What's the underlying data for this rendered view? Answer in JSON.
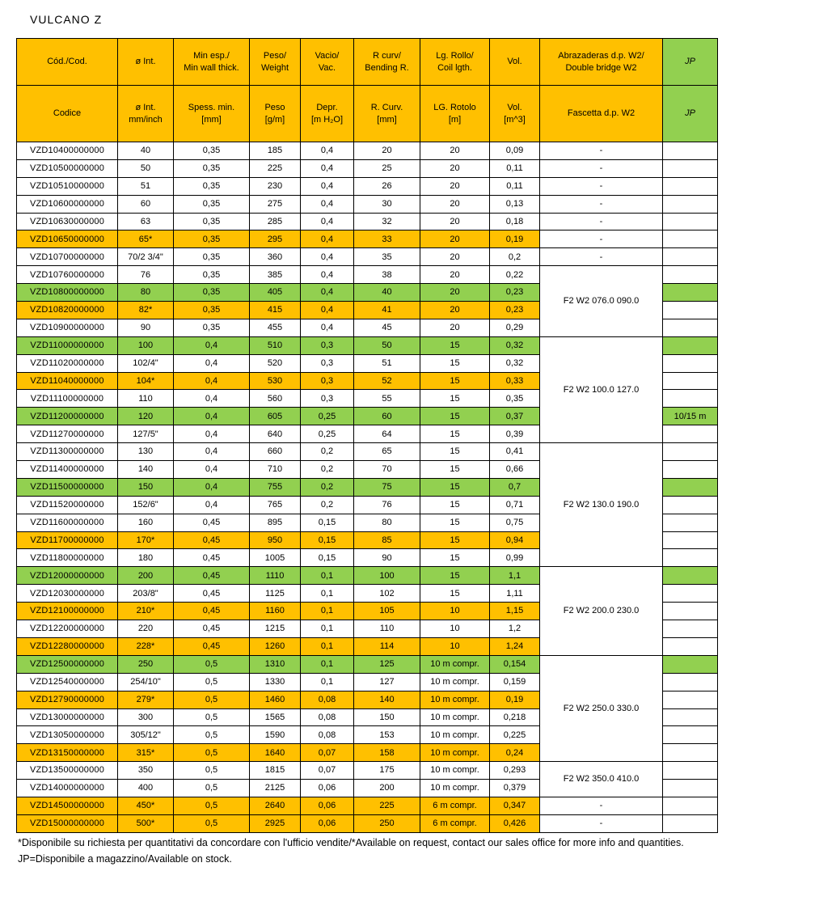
{
  "title": "VULCANO Z",
  "colors": {
    "header_orange": "#FFC000",
    "row_highlight_orange": "#FFC000",
    "row_highlight_green": "#92D050",
    "border": "#000000"
  },
  "header": {
    "row1": [
      "Cód./Cod.",
      "ø Int.",
      "Min esp./\nMin wall thick.",
      "Peso/\nWeight",
      "Vacio/\nVac.",
      "R curv/\nBending R.",
      "Lg. Rollo/\nCoil lgth.",
      "Vol.",
      "Abrazaderas d.p. W2/\nDouble bridge W2",
      "JP"
    ],
    "row2": [
      "Codice",
      "ø Int.\nmm/inch",
      "Spess. min.\n[mm]",
      "Peso\n[g/m]",
      "Depr.\n[m H₂O]",
      "R. Curv.\n[mm]",
      "LG. Rotolo\n[m]",
      "Vol.\n[m^3]",
      "Fascetta d.p. W2",
      "JP"
    ],
    "column_ids": [
      "code",
      "diameter",
      "min-wall",
      "weight",
      "vacuum",
      "bending-radius",
      "coil-length",
      "volume",
      "double-bridge-clamp",
      "jp"
    ]
  },
  "rows": [
    {
      "code": "VZD10400000000",
      "size": "40",
      "thickness": "0,35",
      "weight": "185",
      "vacuum": "0,4",
      "bending_r": "20",
      "coil": "20",
      "volume": "0,09",
      "highlight": "",
      "jp_bg": "",
      "jp_text": "",
      "fascetta": {
        "text": "-",
        "rowspan": 1
      }
    },
    {
      "code": "VZD10500000000",
      "size": "50",
      "thickness": "0,35",
      "weight": "225",
      "vacuum": "0,4",
      "bending_r": "25",
      "coil": "20",
      "volume": "0,11",
      "highlight": "",
      "jp_bg": "",
      "jp_text": "",
      "fascetta": {
        "text": "-",
        "rowspan": 1
      }
    },
    {
      "code": "VZD10510000000",
      "size": "51",
      "thickness": "0,35",
      "weight": "230",
      "vacuum": "0,4",
      "bending_r": "26",
      "coil": "20",
      "volume": "0,11",
      "highlight": "",
      "jp_bg": "",
      "jp_text": "",
      "fascetta": {
        "text": "-",
        "rowspan": 1
      }
    },
    {
      "code": "VZD10600000000",
      "size": "60",
      "thickness": "0,35",
      "weight": "275",
      "vacuum": "0,4",
      "bending_r": "30",
      "coil": "20",
      "volume": "0,13",
      "highlight": "",
      "jp_bg": "",
      "jp_text": "",
      "fascetta": {
        "text": "-",
        "rowspan": 1
      }
    },
    {
      "code": "VZD10630000000",
      "size": "63",
      "thickness": "0,35",
      "weight": "285",
      "vacuum": "0,4",
      "bending_r": "32",
      "coil": "20",
      "volume": "0,18",
      "highlight": "",
      "jp_bg": "",
      "jp_text": "",
      "fascetta": {
        "text": "-",
        "rowspan": 1
      }
    },
    {
      "code": "VZD10650000000",
      "size": "65*",
      "thickness": "0,35",
      "weight": "295",
      "vacuum": "0,4",
      "bending_r": "33",
      "coil": "20",
      "volume": "0,19",
      "highlight": "orange",
      "jp_bg": "",
      "jp_text": "",
      "fascetta": {
        "text": "-",
        "rowspan": 1
      }
    },
    {
      "code": "VZD10700000000",
      "size": "70/2 3/4\"",
      "thickness": "0,35",
      "weight": "360",
      "vacuum": "0,4",
      "bending_r": "35",
      "coil": "20",
      "volume": "0,2",
      "highlight": "",
      "jp_bg": "",
      "jp_text": "",
      "fascetta": {
        "text": "-",
        "rowspan": 1
      }
    },
    {
      "code": "VZD10760000000",
      "size": "76",
      "thickness": "0,35",
      "weight": "385",
      "vacuum": "0,4",
      "bending_r": "38",
      "coil": "20",
      "volume": "0,22",
      "highlight": "",
      "jp_bg": "",
      "jp_text": "",
      "fascetta": {
        "text": "F2 W2 076.0 090.0",
        "rowspan": 4
      }
    },
    {
      "code": "VZD10800000000",
      "size": "80",
      "thickness": "0,35",
      "weight": "405",
      "vacuum": "0,4",
      "bending_r": "40",
      "coil": "20",
      "volume": "0,23",
      "highlight": "green",
      "jp_bg": "green",
      "jp_text": "",
      "fascetta": null
    },
    {
      "code": "VZD10820000000",
      "size": "82*",
      "thickness": "0,35",
      "weight": "415",
      "vacuum": "0,4",
      "bending_r": "41",
      "coil": "20",
      "volume": "0,23",
      "highlight": "orange",
      "jp_bg": "",
      "jp_text": "",
      "fascetta": null
    },
    {
      "code": "VZD10900000000",
      "size": "90",
      "thickness": "0,35",
      "weight": "455",
      "vacuum": "0,4",
      "bending_r": "45",
      "coil": "20",
      "volume": "0,29",
      "highlight": "",
      "jp_bg": "",
      "jp_text": "",
      "fascetta": null
    },
    {
      "code": "VZD11000000000",
      "size": "100",
      "thickness": "0,4",
      "weight": "510",
      "vacuum": "0,3",
      "bending_r": "50",
      "coil": "15",
      "volume": "0,32",
      "highlight": "green",
      "jp_bg": "green",
      "jp_text": "",
      "fascetta": {
        "text": "F2 W2 100.0 127.0",
        "rowspan": 6
      }
    },
    {
      "code": "VZD11020000000",
      "size": "102/4\"",
      "thickness": "0,4",
      "weight": "520",
      "vacuum": "0,3",
      "bending_r": "51",
      "coil": "15",
      "volume": "0,32",
      "highlight": "",
      "jp_bg": "",
      "jp_text": "",
      "fascetta": null
    },
    {
      "code": "VZD11040000000",
      "size": "104*",
      "thickness": "0,4",
      "weight": "530",
      "vacuum": "0,3",
      "bending_r": "52",
      "coil": "15",
      "volume": "0,33",
      "highlight": "orange",
      "jp_bg": "",
      "jp_text": "",
      "fascetta": null
    },
    {
      "code": "VZD11100000000",
      "size": "110",
      "thickness": "0,4",
      "weight": "560",
      "vacuum": "0,3",
      "bending_r": "55",
      "coil": "15",
      "volume": "0,35",
      "highlight": "",
      "jp_bg": "",
      "jp_text": "",
      "fascetta": null
    },
    {
      "code": "VZD11200000000",
      "size": "120",
      "thickness": "0,4",
      "weight": "605",
      "vacuum": "0,25",
      "bending_r": "60",
      "coil": "15",
      "volume": "0,37",
      "highlight": "green",
      "jp_bg": "green",
      "jp_text": "10/15 m",
      "fascetta": null
    },
    {
      "code": "VZD11270000000",
      "size": "127/5\"",
      "thickness": "0,4",
      "weight": "640",
      "vacuum": "0,25",
      "bending_r": "64",
      "coil": "15",
      "volume": "0,39",
      "highlight": "",
      "jp_bg": "",
      "jp_text": "",
      "fascetta": null
    },
    {
      "code": "VZD11300000000",
      "size": "130",
      "thickness": "0,4",
      "weight": "660",
      "vacuum": "0,2",
      "bending_r": "65",
      "coil": "15",
      "volume": "0,41",
      "highlight": "",
      "jp_bg": "",
      "jp_text": "",
      "fascetta": {
        "text": "F2 W2 130.0 190.0",
        "rowspan": 7
      }
    },
    {
      "code": "VZD11400000000",
      "size": "140",
      "thickness": "0,4",
      "weight": "710",
      "vacuum": "0,2",
      "bending_r": "70",
      "coil": "15",
      "volume": "0,66",
      "highlight": "",
      "jp_bg": "",
      "jp_text": "",
      "fascetta": null
    },
    {
      "code": "VZD11500000000",
      "size": "150",
      "thickness": "0,4",
      "weight": "755",
      "vacuum": "0,2",
      "bending_r": "75",
      "coil": "15",
      "volume": "0,7",
      "highlight": "green",
      "jp_bg": "green",
      "jp_text": "",
      "fascetta": null
    },
    {
      "code": "VZD11520000000",
      "size": "152/6\"",
      "thickness": "0,4",
      "weight": "765",
      "vacuum": "0,2",
      "bending_r": "76",
      "coil": "15",
      "volume": "0,71",
      "highlight": "",
      "jp_bg": "",
      "jp_text": "",
      "fascetta": null
    },
    {
      "code": "VZD11600000000",
      "size": "160",
      "thickness": "0,45",
      "weight": "895",
      "vacuum": "0,15",
      "bending_r": "80",
      "coil": "15",
      "volume": "0,75",
      "highlight": "",
      "jp_bg": "",
      "jp_text": "",
      "fascetta": null
    },
    {
      "code": "VZD11700000000",
      "size": "170*",
      "thickness": "0,45",
      "weight": "950",
      "vacuum": "0,15",
      "bending_r": "85",
      "coil": "15",
      "volume": "0,94",
      "highlight": "orange",
      "jp_bg": "",
      "jp_text": "",
      "fascetta": null
    },
    {
      "code": "VZD11800000000",
      "size": "180",
      "thickness": "0,45",
      "weight": "1005",
      "vacuum": "0,15",
      "bending_r": "90",
      "coil": "15",
      "volume": "0,99",
      "highlight": "",
      "jp_bg": "",
      "jp_text": "",
      "fascetta": null
    },
    {
      "code": "VZD12000000000",
      "size": "200",
      "thickness": "0,45",
      "weight": "1110",
      "vacuum": "0,1",
      "bending_r": "100",
      "coil": "15",
      "volume": "1,1",
      "highlight": "green",
      "jp_bg": "green",
      "jp_text": "",
      "fascetta": {
        "text": "F2 W2 200.0 230.0",
        "rowspan": 5
      }
    },
    {
      "code": "VZD12030000000",
      "size": "203/8\"",
      "thickness": "0,45",
      "weight": "1125",
      "vacuum": "0,1",
      "bending_r": "102",
      "coil": "15",
      "volume": "1,11",
      "highlight": "",
      "jp_bg": "",
      "jp_text": "",
      "fascetta": null
    },
    {
      "code": "VZD12100000000",
      "size": "210*",
      "thickness": "0,45",
      "weight": "1160",
      "vacuum": "0,1",
      "bending_r": "105",
      "coil": "10",
      "volume": "1,15",
      "highlight": "orange",
      "jp_bg": "",
      "jp_text": "",
      "fascetta": null
    },
    {
      "code": "VZD12200000000",
      "size": "220",
      "thickness": "0,45",
      "weight": "1215",
      "vacuum": "0,1",
      "bending_r": "110",
      "coil": "10",
      "volume": "1,2",
      "highlight": "",
      "jp_bg": "",
      "jp_text": "",
      "fascetta": null
    },
    {
      "code": "VZD12280000000",
      "size": "228*",
      "thickness": "0,45",
      "weight": "1260",
      "vacuum": "0,1",
      "bending_r": "114",
      "coil": "10",
      "volume": "1,24",
      "highlight": "orange",
      "jp_bg": "",
      "jp_text": "",
      "fascetta": null
    },
    {
      "code": "VZD12500000000",
      "size": "250",
      "thickness": "0,5",
      "weight": "1310",
      "vacuum": "0,1",
      "bending_r": "125",
      "coil": "10 m compr.",
      "volume": "0,154",
      "highlight": "green",
      "jp_bg": "green",
      "jp_text": "",
      "fascetta": {
        "text": "F2 W2 250.0 330.0",
        "rowspan": 6
      }
    },
    {
      "code": "VZD12540000000",
      "size": "254/10\"",
      "thickness": "0,5",
      "weight": "1330",
      "vacuum": "0,1",
      "bending_r": "127",
      "coil": "10 m compr.",
      "volume": "0,159",
      "highlight": "",
      "jp_bg": "",
      "jp_text": "",
      "fascetta": null
    },
    {
      "code": "VZD12790000000",
      "size": "279*",
      "thickness": "0,5",
      "weight": "1460",
      "vacuum": "0,08",
      "bending_r": "140",
      "coil": "10 m compr.",
      "volume": "0,19",
      "highlight": "orange",
      "jp_bg": "",
      "jp_text": "",
      "fascetta": null
    },
    {
      "code": "VZD13000000000",
      "size": "300",
      "thickness": "0,5",
      "weight": "1565",
      "vacuum": "0,08",
      "bending_r": "150",
      "coil": "10 m compr.",
      "volume": "0,218",
      "highlight": "",
      "jp_bg": "",
      "jp_text": "",
      "fascetta": null
    },
    {
      "code": "VZD13050000000",
      "size": "305/12\"",
      "thickness": "0,5",
      "weight": "1590",
      "vacuum": "0,08",
      "bending_r": "153",
      "coil": "10 m compr.",
      "volume": "0,225",
      "highlight": "",
      "jp_bg": "",
      "jp_text": "",
      "fascetta": null
    },
    {
      "code": "VZD13150000000",
      "size": "315*",
      "thickness": "0,5",
      "weight": "1640",
      "vacuum": "0,07",
      "bending_r": "158",
      "coil": "10 m compr.",
      "volume": "0,24",
      "highlight": "orange",
      "jp_bg": "",
      "jp_text": "",
      "fascetta": null
    },
    {
      "code": "VZD13500000000",
      "size": "350",
      "thickness": "0,5",
      "weight": "1815",
      "vacuum": "0,07",
      "bending_r": "175",
      "coil": "10 m compr.",
      "volume": "0,293",
      "highlight": "",
      "jp_bg": "",
      "jp_text": "",
      "fascetta": {
        "text": "F2 W2 350.0 410.0",
        "rowspan": 2
      }
    },
    {
      "code": "VZD14000000000",
      "size": "400",
      "thickness": "0,5",
      "weight": "2125",
      "vacuum": "0,06",
      "bending_r": "200",
      "coil": "10 m compr.",
      "volume": "0,379",
      "highlight": "",
      "jp_bg": "",
      "jp_text": "",
      "fascetta": null
    },
    {
      "code": "VZD14500000000",
      "size": "450*",
      "thickness": "0,5",
      "weight": "2640",
      "vacuum": "0,06",
      "bending_r": "225",
      "coil": "6 m compr.",
      "volume": "0,347",
      "highlight": "orange",
      "jp_bg": "",
      "jp_text": "",
      "fascetta": {
        "text": "-",
        "rowspan": 1
      }
    },
    {
      "code": "VZD15000000000",
      "size": "500*",
      "thickness": "0,5",
      "weight": "2925",
      "vacuum": "0,06",
      "bending_r": "250",
      "coil": "6 m compr.",
      "volume": "0,426",
      "highlight": "orange",
      "jp_bg": "",
      "jp_text": "",
      "fascetta": {
        "text": "-",
        "rowspan": 1
      }
    }
  ],
  "footnotes": [
    "*Disponibile su richiesta per quantitativi da concordare con l'ufficio vendite/*Available on request, contact our sales office for more info and quantities.",
    "JP=Disponibile a magazzino/Available on stock."
  ]
}
